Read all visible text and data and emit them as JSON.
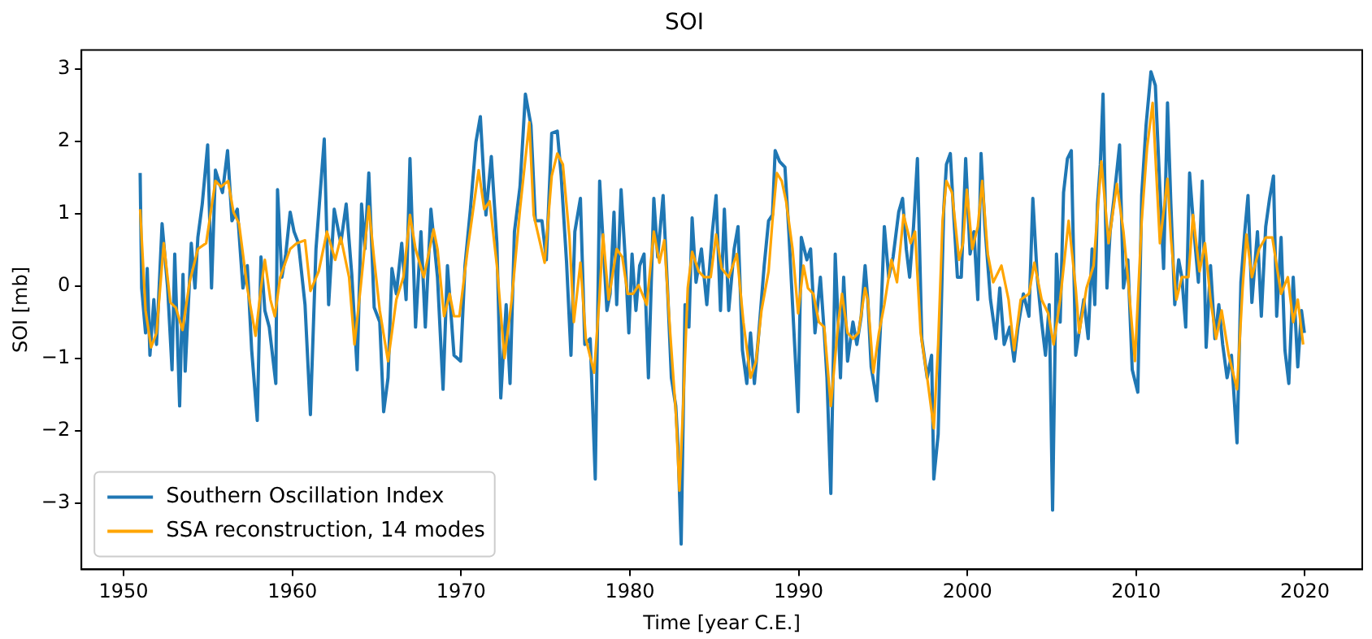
{
  "chart_data": {
    "type": "line",
    "title": "SOI",
    "xlabel": "Time [year C.E.]",
    "ylabel": "SOI [mb]",
    "xlim": [
      1947.5,
      2023.4
    ],
    "xticks": [
      1950,
      1960,
      1970,
      1980,
      1990,
      2000,
      2010,
      2020
    ],
    "ylim": [
      -3.92,
      3.26
    ],
    "yticks": [
      -3,
      -2,
      -1,
      0,
      1,
      2,
      3
    ],
    "grid": false,
    "legend": "bottom left",
    "marker": "none",
    "line_style": "solid",
    "series": [
      {
        "name": "Southern Oscillation Index",
        "color": "#1f77b4",
        "x": [
          1950.98,
          1951.07,
          1951.3,
          1951.4,
          1951.56,
          1951.79,
          1951.95,
          1952.28,
          1952.61,
          1952.87,
          1953.03,
          1953.32,
          1953.52,
          1953.65,
          1954.01,
          1954.23,
          1954.4,
          1954.66,
          1954.98,
          1955.21,
          1955.44,
          1955.86,
          1956.16,
          1956.42,
          1956.74,
          1957.07,
          1957.33,
          1957.59,
          1957.92,
          1958.14,
          1958.37,
          1958.63,
          1959.02,
          1959.12,
          1959.38,
          1959.61,
          1959.87,
          1960.1,
          1960.36,
          1960.75,
          1961.07,
          1961.4,
          1961.89,
          1962.15,
          1962.48,
          1962.87,
          1963.19,
          1963.52,
          1963.84,
          1964.1,
          1964.3,
          1964.53,
          1964.85,
          1965.18,
          1965.41,
          1965.67,
          1965.9,
          1966.16,
          1966.48,
          1966.74,
          1966.97,
          1967.3,
          1967.62,
          1967.88,
          1968.21,
          1968.6,
          1968.93,
          1969.19,
          1969.58,
          1969.97,
          1970.23,
          1970.55,
          1970.88,
          1971.14,
          1971.47,
          1971.79,
          1972.12,
          1972.35,
          1972.67,
          1972.9,
          1973.16,
          1973.49,
          1973.81,
          1974.14,
          1974.4,
          1974.79,
          1975.05,
          1975.37,
          1975.7,
          1975.93,
          1976.25,
          1976.51,
          1976.74,
          1977.07,
          1977.33,
          1977.65,
          1977.95,
          1978.21,
          1978.64,
          1978.83,
          1979.06,
          1979.22,
          1979.48,
          1979.71,
          1979.94,
          1980.13,
          1980.36,
          1980.58,
          1980.84,
          1981.1,
          1981.42,
          1981.65,
          1981.97,
          1982.23,
          1982.46,
          1982.72,
          1982.85,
          1983.04,
          1983.27,
          1983.5,
          1983.69,
          1983.92,
          1984.24,
          1984.56,
          1984.89,
          1985.11,
          1985.37,
          1985.6,
          1985.86,
          1986.18,
          1986.41,
          1986.67,
          1986.93,
          1987.15,
          1987.38,
          1987.64,
          1987.96,
          1988.22,
          1988.45,
          1988.61,
          1988.87,
          1989.19,
          1989.42,
          1989.64,
          1989.97,
          1990.16,
          1990.49,
          1990.71,
          1990.97,
          1991.29,
          1991.52,
          1991.68,
          1991.91,
          1992.17,
          1992.48,
          1992.67,
          1992.9,
          1993.22,
          1993.45,
          1993.71,
          1993.94,
          1994.1,
          1994.3,
          1994.63,
          1994.85,
          1995.08,
          1995.34,
          1995.6,
          1995.93,
          1996.16,
          1996.38,
          1996.58,
          1996.81,
          1997.04,
          1997.3,
          1997.62,
          1997.88,
          1998.01,
          1998.27,
          1998.6,
          1998.76,
          1998.99,
          1999.19,
          1999.41,
          1999.64,
          1999.9,
          2000.16,
          2000.39,
          2000.62,
          2000.81,
          2001.04,
          2001.37,
          2001.69,
          2001.92,
          2002.18,
          2002.51,
          2002.77,
          2003.0,
          2003.32,
          2003.65,
          2003.88,
          2004.14,
          2004.4,
          2004.63,
          2004.85,
          2005.05,
          2005.28,
          2005.5,
          2005.7,
          2005.93,
          2006.16,
          2006.42,
          2006.9,
          2007.16,
          2007.39,
          2007.55,
          2007.71,
          2007.88,
          2008.04,
          2008.27,
          2008.46,
          2008.69,
          2009.02,
          2009.25,
          2009.51,
          2009.77,
          2010.1,
          2010.33,
          2010.59,
          2010.88,
          2011.14,
          2011.41,
          2011.63,
          2011.86,
          2012.06,
          2012.29,
          2012.52,
          2012.71,
          2012.94,
          2013.17,
          2013.43,
          2013.69,
          2013.92,
          2014.15,
          2014.41,
          2014.67,
          2014.9,
          2015.13,
          2015.39,
          2015.65,
          2015.82,
          2015.98,
          2016.21,
          2016.44,
          2016.63,
          2016.86,
          2017.19,
          2017.42,
          2017.68,
          2017.91,
          2018.14,
          2018.33,
          2018.59,
          2018.82,
          2019.05,
          2019.31,
          2019.58,
          2019.8,
          2019.97
        ],
        "values": [
          1.56,
          -0.03,
          -0.65,
          0.24,
          -0.96,
          -0.19,
          -0.81,
          0.86,
          -0.03,
          -1.16,
          0.44,
          -1.66,
          0.16,
          -1.18,
          0.59,
          -0.03,
          0.67,
          1.13,
          1.95,
          -0.03,
          1.6,
          1.29,
          1.87,
          0.9,
          1.06,
          -0.03,
          0.28,
          -0.89,
          -1.86,
          0.4,
          -0.34,
          -0.57,
          -1.35,
          1.33,
          0.12,
          0.44,
          1.02,
          0.75,
          0.59,
          -0.26,
          -1.78,
          0.51,
          2.03,
          -0.26,
          1.06,
          0.59,
          1.13,
          0.16,
          -1.16,
          1.13,
          0.51,
          1.56,
          -0.3,
          -0.5,
          -1.74,
          -1.27,
          0.24,
          -0.11,
          0.59,
          -0.19,
          1.76,
          -0.57,
          0.75,
          -0.57,
          1.06,
          0.12,
          -1.43,
          0.28,
          -0.96,
          -1.04,
          0.28,
          1.06,
          1.99,
          2.34,
          0.98,
          1.79,
          0.59,
          -1.55,
          -0.26,
          -1.35,
          0.75,
          1.37,
          2.65,
          2.22,
          0.9,
          0.9,
          0.36,
          2.11,
          2.14,
          1.52,
          0.32,
          -0.96,
          0.75,
          1.21,
          -0.81,
          -0.73,
          -2.67,
          1.45,
          -0.34,
          -0.11,
          1.02,
          -0.26,
          1.33,
          0.44,
          -0.65,
          0.44,
          -0.34,
          0.28,
          0.44,
          -1.27,
          1.21,
          0.4,
          1.25,
          -0.03,
          -1.27,
          -1.66,
          -2.21,
          -3.57,
          -0.26,
          -0.57,
          0.94,
          0.05,
          0.51,
          -0.26,
          0.75,
          1.25,
          -0.34,
          1.06,
          -0.34,
          0.51,
          0.82,
          -0.89,
          -1.35,
          -0.65,
          -1.35,
          -0.65,
          0.28,
          0.9,
          0.98,
          1.87,
          1.72,
          1.64,
          0.75,
          -0.26,
          -1.74,
          0.67,
          0.36,
          0.51,
          -0.65,
          0.12,
          -0.65,
          -1.27,
          -2.87,
          0.44,
          -1.27,
          0.12,
          -1.04,
          -0.5,
          -0.81,
          -0.42,
          0.28,
          -0.19,
          -1.12,
          -1.59,
          -0.57,
          0.82,
          0.12,
          0.4,
          1.02,
          1.21,
          0.51,
          0.12,
          0.82,
          1.76,
          -0.73,
          -1.27,
          -0.96,
          -2.67,
          -2.05,
          1.06,
          1.68,
          1.83,
          0.98,
          0.12,
          0.12,
          1.76,
          0.44,
          0.75,
          -0.19,
          1.83,
          0.82,
          -0.19,
          -0.73,
          -0.03,
          -0.81,
          -0.57,
          -1.04,
          -0.57,
          -0.11,
          -0.42,
          1.21,
          0.12,
          -0.5,
          -0.96,
          -0.26,
          -3.1,
          0.44,
          -0.5,
          1.29,
          1.76,
          1.87,
          -0.96,
          -0.19,
          -0.73,
          0.51,
          -0.26,
          1.13,
          1.68,
          2.65,
          -0.03,
          0.75,
          1.21,
          1.95,
          -0.03,
          0.36,
          -1.16,
          -1.47,
          1.25,
          2.22,
          2.96,
          2.77,
          1.33,
          0.24,
          2.53,
          1.13,
          -0.26,
          0.36,
          0.12,
          -0.57,
          1.56,
          0.75,
          0.05,
          1.45,
          -0.85,
          0.28,
          -0.73,
          -0.26,
          -0.81,
          -1.27,
          -0.96,
          -1.59,
          -2.17,
          0.05,
          0.75,
          1.25,
          -0.23,
          0.75,
          -0.42,
          0.82,
          1.21,
          1.52,
          -0.42,
          0.67,
          -0.89,
          -1.35,
          0.12,
          -1.12,
          -0.34,
          -0.65
        ]
      },
      {
        "name": "SSA reconstruction, 14 modes",
        "color": "#ffa500",
        "x": [
          1950.98,
          1951.3,
          1951.63,
          1951.95,
          1952.38,
          1952.77,
          1953.09,
          1953.49,
          1953.91,
          1954.4,
          1954.89,
          1955.44,
          1955.77,
          1956.19,
          1956.51,
          1956.84,
          1957.33,
          1957.82,
          1958.14,
          1958.37,
          1958.7,
          1958.96,
          1959.28,
          1959.87,
          1960.26,
          1960.75,
          1961.07,
          1961.56,
          1962.05,
          1962.54,
          1962.87,
          1963.36,
          1963.68,
          1964.04,
          1964.53,
          1964.85,
          1965.18,
          1965.67,
          1966.16,
          1966.58,
          1966.97,
          1967.3,
          1967.79,
          1968.37,
          1968.6,
          1968.99,
          1969.32,
          1969.58,
          1969.9,
          1970.39,
          1971.04,
          1971.37,
          1971.69,
          1972.12,
          1972.57,
          1973.0,
          1973.49,
          1974.04,
          1974.3,
          1974.95,
          1975.37,
          1975.7,
          1976.03,
          1976.42,
          1976.68,
          1977.07,
          1977.39,
          1977.88,
          1978.19,
          1978.41,
          1978.74,
          1979.22,
          1979.55,
          1979.87,
          1980.19,
          1980.52,
          1981.0,
          1981.42,
          1981.75,
          1982.04,
          1982.39,
          1982.72,
          1982.94,
          1983.17,
          1983.43,
          1983.69,
          1984.08,
          1984.4,
          1984.79,
          1985.11,
          1985.44,
          1985.86,
          1986.34,
          1986.73,
          1987.15,
          1987.48,
          1987.8,
          1988.22,
          1988.45,
          1988.71,
          1989.0,
          1989.26,
          1989.64,
          1989.97,
          1990.29,
          1990.55,
          1990.87,
          1991.2,
          1991.52,
          1991.91,
          1992.35,
          1992.57,
          1992.9,
          1993.22,
          1993.55,
          1993.94,
          1994.1,
          1994.43,
          1994.76,
          1995.08,
          1995.5,
          1995.83,
          1996.22,
          1996.64,
          1996.9,
          1997.23,
          1997.62,
          1998.01,
          1998.27,
          1998.53,
          1998.76,
          1999.09,
          1999.51,
          1999.74,
          1999.97,
          2000.29,
          2000.62,
          2000.88,
          2001.21,
          2001.53,
          2002.02,
          2002.44,
          2002.77,
          2003.16,
          2003.65,
          2003.97,
          2004.4,
          2004.79,
          2005.11,
          2005.5,
          2006.0,
          2006.42,
          2006.63,
          2007.06,
          2007.48,
          2007.94,
          2008.37,
          2008.86,
          2009.25,
          2009.51,
          2009.93,
          2010.33,
          2010.65,
          2010.98,
          2011.41,
          2011.86,
          2012.06,
          2012.39,
          2012.71,
          2013.1,
          2013.37,
          2013.76,
          2014.08,
          2014.41,
          2014.74,
          2015.07,
          2015.49,
          2015.98,
          2016.31,
          2016.54,
          2016.86,
          2017.29,
          2017.68,
          2018.07,
          2018.59,
          2018.99,
          2019.31,
          2019.58,
          2019.9
        ],
        "values": [
          1.06,
          -0.34,
          -0.85,
          -0.65,
          0.59,
          -0.23,
          -0.3,
          -0.61,
          0.05,
          0.51,
          0.59,
          1.45,
          1.37,
          1.45,
          1.02,
          0.86,
          -0.03,
          -0.69,
          -0.03,
          0.36,
          -0.19,
          -0.42,
          0.12,
          0.51,
          0.59,
          0.63,
          -0.07,
          0.2,
          0.75,
          0.36,
          0.67,
          0.12,
          -0.81,
          -0.03,
          1.1,
          0.36,
          -0.34,
          -1.04,
          -0.19,
          0.12,
          0.98,
          0.51,
          0.12,
          0.78,
          0.51,
          -0.42,
          -0.11,
          -0.42,
          -0.42,
          0.51,
          1.6,
          1.06,
          1.17,
          0.28,
          -1.0,
          -0.19,
          1.06,
          2.26,
          0.98,
          0.32,
          1.52,
          1.83,
          1.68,
          0.67,
          -0.5,
          0.32,
          -0.73,
          -1.2,
          -0.19,
          0.71,
          -0.19,
          0.51,
          0.4,
          -0.11,
          -0.11,
          0.01,
          -0.26,
          0.75,
          0.32,
          0.63,
          -0.65,
          -1.74,
          -2.83,
          -1.59,
          -0.03,
          0.47,
          0.2,
          0.12,
          0.12,
          0.71,
          0.24,
          0.12,
          0.44,
          -0.5,
          -1.27,
          -1.04,
          -0.34,
          0.2,
          0.9,
          1.56,
          1.45,
          1.17,
          0.51,
          -0.38,
          0.28,
          -0.03,
          -0.11,
          -0.5,
          -0.57,
          -1.66,
          -0.5,
          -0.11,
          -0.65,
          -0.73,
          -0.65,
          -0.03,
          -0.19,
          -1.2,
          -0.65,
          -0.26,
          0.36,
          0.05,
          0.98,
          0.59,
          0.75,
          -0.65,
          -1.27,
          -1.97,
          -0.81,
          0.9,
          1.45,
          1.29,
          0.36,
          0.59,
          1.33,
          0.51,
          0.82,
          1.45,
          0.44,
          0.05,
          0.28,
          -0.19,
          -0.89,
          -0.19,
          -0.11,
          0.32,
          -0.19,
          -0.38,
          -0.81,
          -0.19,
          0.9,
          -0.03,
          -0.65,
          -0.03,
          0.28,
          1.72,
          0.59,
          1.41,
          0.75,
          0.12,
          -1.04,
          0.9,
          1.91,
          2.53,
          0.59,
          1.48,
          0.67,
          -0.19,
          0.12,
          0.12,
          0.98,
          0.2,
          0.59,
          -0.19,
          -0.73,
          -0.34,
          -0.96,
          -1.43,
          -0.03,
          0.71,
          0.12,
          0.51,
          0.67,
          0.67,
          -0.11,
          0.12,
          -0.5,
          -0.19,
          -0.81
        ]
      }
    ]
  }
}
